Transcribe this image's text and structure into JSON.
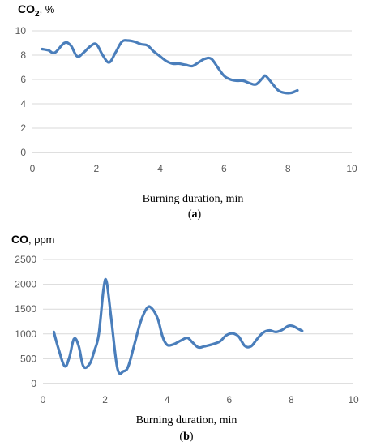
{
  "chart_data": [
    {
      "type": "line",
      "ylabel_main": "CO",
      "ylabel_sub": "2",
      "ylabel_unit": ", %",
      "xlabel": "Burning duration, min",
      "panel_label_open": "(",
      "panel_label_letter": "a",
      "panel_label_close": ")",
      "xlim": [
        0,
        10
      ],
      "ylim": [
        0,
        10
      ],
      "xticks": [
        0,
        2,
        4,
        6,
        8,
        10
      ],
      "yticks": [
        0,
        2,
        4,
        6,
        8,
        10
      ],
      "grid": "horizontal",
      "color": "#4a7ebb",
      "series": [
        {
          "x": [
            0.3,
            0.5,
            0.7,
            1.0,
            1.2,
            1.4,
            1.6,
            1.8,
            2.0,
            2.2,
            2.4,
            2.6,
            2.8,
            3.0,
            3.2,
            3.4,
            3.6,
            3.8,
            4.0,
            4.2,
            4.4,
            4.6,
            4.8,
            5.0,
            5.2,
            5.4,
            5.6,
            5.8,
            6.0,
            6.2,
            6.4,
            6.6,
            6.8,
            7.0,
            7.2,
            7.3,
            7.5,
            7.7,
            7.9,
            8.1,
            8.3
          ],
          "y": [
            8.5,
            8.4,
            8.2,
            9.0,
            8.8,
            7.9,
            8.2,
            8.7,
            8.9,
            8.0,
            7.4,
            8.2,
            9.1,
            9.2,
            9.1,
            8.9,
            8.8,
            8.3,
            7.9,
            7.5,
            7.3,
            7.3,
            7.2,
            7.1,
            7.4,
            7.7,
            7.7,
            7.0,
            6.3,
            6.0,
            5.9,
            5.9,
            5.7,
            5.6,
            6.1,
            6.3,
            5.7,
            5.1,
            4.9,
            4.9,
            5.1
          ]
        }
      ]
    },
    {
      "type": "line",
      "ylabel_main": "CO",
      "ylabel_unit": ", ppm",
      "xlabel": "Burning duration, min",
      "panel_label_open": "(",
      "panel_label_letter": "b",
      "panel_label_close": ")",
      "xlim": [
        0,
        10
      ],
      "ylim": [
        0,
        2500
      ],
      "xticks": [
        0,
        2,
        4,
        6,
        8,
        10
      ],
      "yticks": [
        0,
        500,
        1000,
        1500,
        2000,
        2500
      ],
      "grid": "horizontal",
      "color": "#4a7ebb",
      "series": [
        {
          "x": [
            0.35,
            0.5,
            0.7,
            0.85,
            1.0,
            1.15,
            1.3,
            1.5,
            1.65,
            1.8,
            1.95,
            2.05,
            2.2,
            2.4,
            2.6,
            2.75,
            2.95,
            3.15,
            3.35,
            3.5,
            3.7,
            3.85,
            4.0,
            4.2,
            4.45,
            4.65,
            4.8,
            5.0,
            5.2,
            5.45,
            5.7,
            5.9,
            6.1,
            6.3,
            6.5,
            6.7,
            6.9,
            7.1,
            7.3,
            7.5,
            7.7,
            7.9,
            8.05,
            8.2,
            8.35
          ],
          "y": [
            1040,
            700,
            350,
            530,
            900,
            760,
            350,
            390,
            650,
            1000,
            1900,
            2050,
            1300,
            300,
            250,
            350,
            800,
            1250,
            1520,
            1520,
            1300,
            950,
            780,
            790,
            870,
            920,
            840,
            730,
            750,
            790,
            850,
            970,
            1010,
            950,
            760,
            750,
            900,
            1030,
            1070,
            1040,
            1080,
            1160,
            1160,
            1110,
            1060
          ]
        }
      ]
    }
  ]
}
